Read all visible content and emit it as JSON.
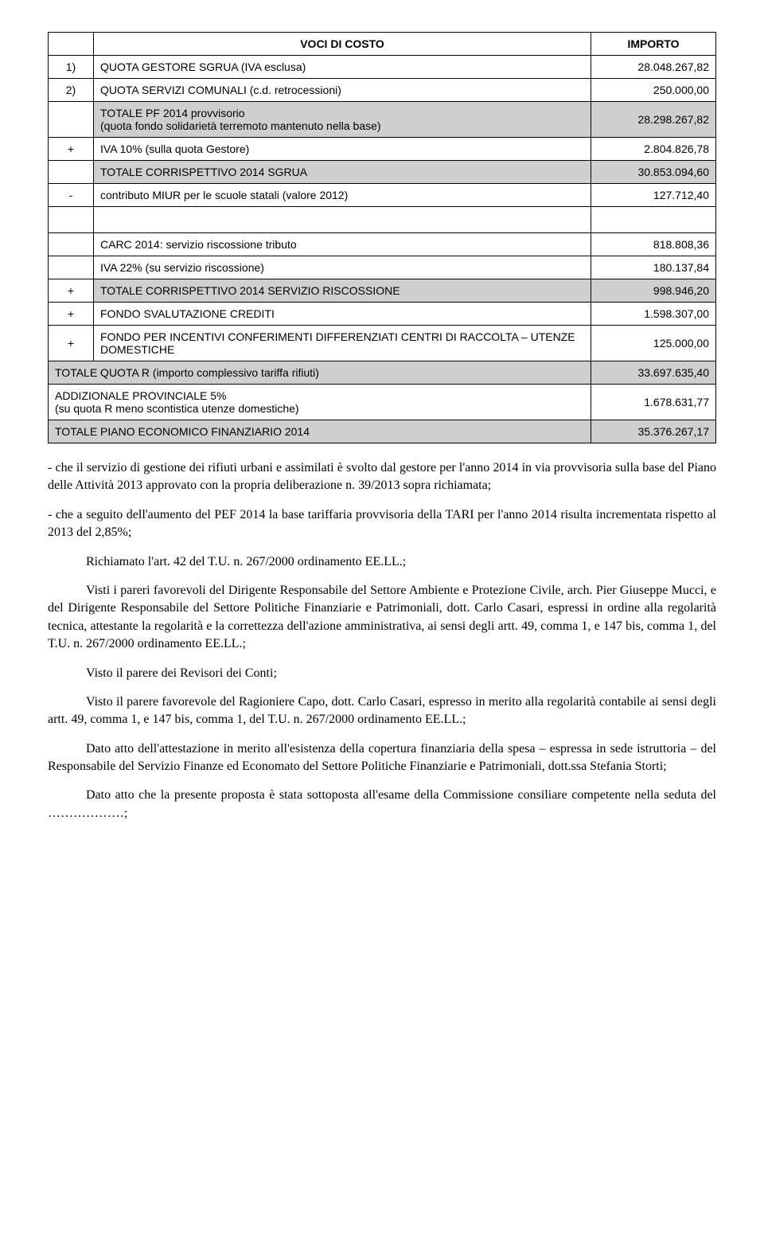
{
  "table1": {
    "header": {
      "col2": "VOCI DI COSTO",
      "col3": "IMPORTO"
    },
    "rows": [
      {
        "n": "1)",
        "desc": "QUOTA GESTORE SGRUA (IVA esclusa)",
        "val": "28.048.267,82",
        "shaded": false
      },
      {
        "n": "2)",
        "desc": "QUOTA SERVIZI COMUNALI (c.d. retrocessioni)",
        "val": "250.000,00",
        "shaded": false
      },
      {
        "n": "",
        "desc": "TOTALE PF 2014 provvisorio\n(quota fondo solidarietà terremoto mantenuto nella base)",
        "val": "28.298.267,82",
        "shaded": true
      },
      {
        "n": "+",
        "desc": "IVA 10% (sulla quota Gestore)",
        "val": "2.804.826,78",
        "shaded": false
      },
      {
        "n": "",
        "desc": "TOTALE CORRISPETTIVO 2014 SGRUA",
        "val": "30.853.094,60",
        "shaded": true
      },
      {
        "n": "-",
        "desc": "contributo MIUR per le scuole statali (valore 2012)",
        "val": "127.712,40",
        "shaded": false
      }
    ]
  },
  "table2": {
    "rows": [
      {
        "n": "",
        "desc": "CARC 2014: servizio riscossione tributo",
        "val": "818.808,36",
        "shaded": false
      },
      {
        "n": "",
        "desc": "IVA 22% (su servizio riscossione)",
        "val": "180.137,84",
        "shaded": false
      },
      {
        "n": "+",
        "desc": "TOTALE CORRISPETTIVO 2014 SERVIZIO RISCOSSIONE",
        "val": "998.946,20",
        "shaded": true
      },
      {
        "n": "+",
        "desc": "FONDO SVALUTAZIONE CREDITI",
        "val": "1.598.307,00",
        "shaded": false
      },
      {
        "n": "+",
        "desc": "FONDO PER INCENTIVI CONFERIMENTI DIFFERENZIATI CENTRI DI RACCOLTA – UTENZE  DOMESTICHE",
        "val": "125.000,00",
        "shaded": false
      },
      {
        "n": "",
        "desc": "TOTALE QUOTA R (importo complessivo tariffa rifiuti)",
        "val": "33.697.635,40",
        "shaded": true,
        "span": true
      },
      {
        "n": "",
        "desc": "ADDIZIONALE PROVINCIALE  5%\n(su quota R meno scontistica utenze domestiche)",
        "val": "1.678.631,77",
        "shaded": false,
        "span": true
      },
      {
        "n": "",
        "desc": "TOTALE PIANO ECONOMICO FINANZIARIO 2014",
        "val": "35.376.267,17",
        "shaded": true,
        "span": true
      }
    ]
  },
  "paras": {
    "p1": "- che il servizio di gestione dei rifiuti urbani e assimilati è svolto dal gestore per l'anno 2014 in via provvisoria sulla base del Piano delle Attività 2013 approvato con la propria deliberazione n. 39/2013 sopra richiamata;",
    "p2": "- che a seguito dell'aumento del PEF 2014 la base tariffaria provvisoria della TARI per l'anno 2014 risulta incrementata rispetto al 2013 del 2,85%;",
    "p3": "Richiamato l'art. 42 del T.U. n. 267/2000 ordinamento EE.LL.;",
    "p4": "Visti i pareri favorevoli del Dirigente Responsabile del Settore Ambiente e Protezione Civile, arch. Pier Giuseppe Mucci, e del Dirigente Responsabile del Settore Politiche Finanziarie e Patrimoniali, dott. Carlo Casari, espressi in ordine alla regolarità tecnica, attestante la regolarità e la correttezza dell'azione amministrativa, ai sensi degli artt. 49, comma 1, e 147 bis, comma 1, del T.U. n. 267/2000 ordinamento EE.LL.;",
    "p5": "Visto il parere dei Revisori dei Conti;",
    "p6": "Visto il parere favorevole del Ragioniere Capo, dott. Carlo Casari, espresso in merito alla regolarità contabile ai sensi degli artt. 49, comma 1, e 147 bis, comma 1, del T.U. n. 267/2000 ordinamento EE.LL.;",
    "p7": "Dato atto dell'attestazione in merito all'esistenza della copertura finanziaria della spesa – espressa in sede istruttoria – del Responsabile del Servizio Finanze ed Economato del Settore Politiche Finanziarie e Patrimoniali, dott.ssa Stefania Storti;",
    "p8": "Dato atto che la presente  proposta è stata sottoposta all'esame della Commissione consiliare competente nella seduta del ………………;"
  }
}
